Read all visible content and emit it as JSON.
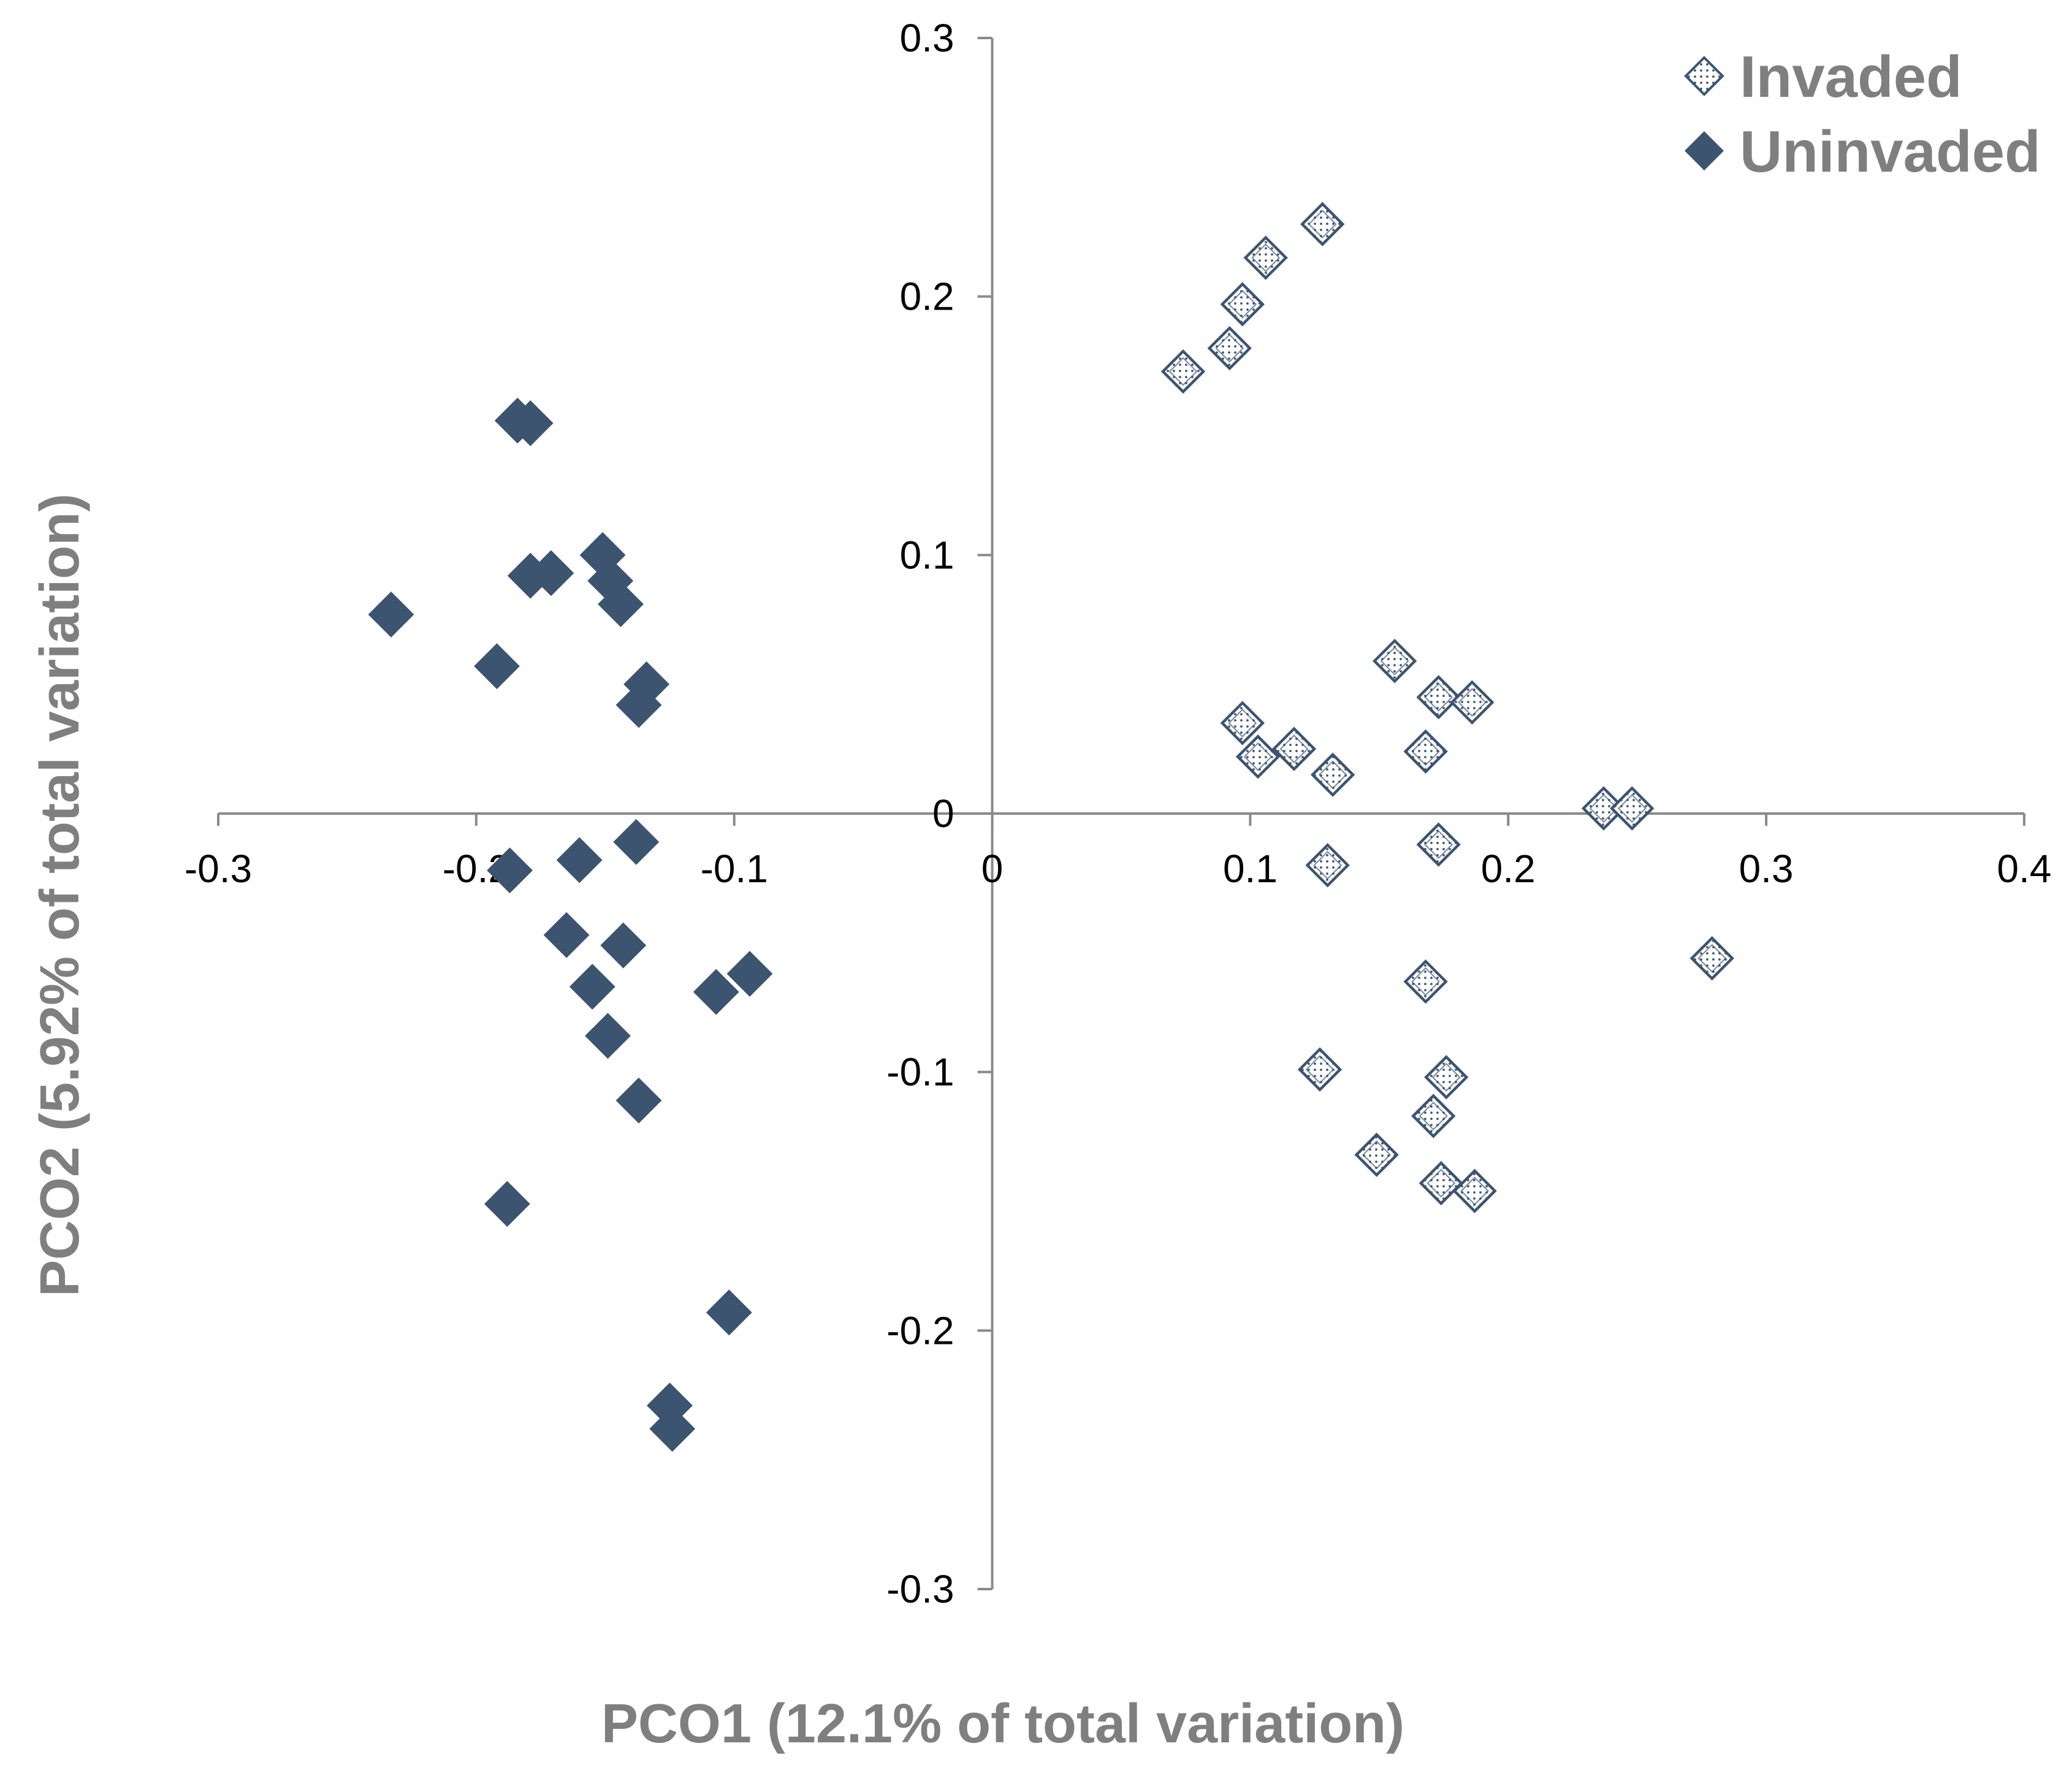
{
  "chart_data": {
    "type": "scatter",
    "title": "",
    "xlabel": "PCO1 (12.1% of total variation)",
    "ylabel": "PCO2 (5.92% of total variation)",
    "xlim": [
      -0.3,
      0.4
    ],
    "ylim": [
      -0.3,
      0.3
    ],
    "x_ticks": [
      -0.3,
      -0.2,
      -0.1,
      0,
      0.1,
      0.2,
      0.3,
      0.4
    ],
    "x_tick_labels": [
      "-0.3",
      "-0.2",
      "-0.1",
      "0",
      "0.1",
      "0.2",
      "0.3",
      "0.4"
    ],
    "y_ticks": [
      0.3,
      0.2,
      0.1,
      0,
      -0.1,
      -0.2,
      -0.3
    ],
    "y_tick_labels": [
      "0.3",
      "0.2",
      "0.1",
      "0",
      "-0.1",
      "-0.2",
      "-0.3"
    ],
    "grid": false,
    "legend_position": "top-right",
    "colors": {
      "uninvaded": "#3d5470",
      "invaded_outline": "#3d5470",
      "invaded_fill": "#ffffff",
      "axis": "#8a8a8a",
      "title_text": "#7f7f7f"
    },
    "series": [
      {
        "name": "Invaded",
        "marker": "diamond-dotted",
        "points": [
          [
            0.128,
            0.228
          ],
          [
            0.106,
            0.215
          ],
          [
            0.097,
            0.197
          ],
          [
            0.092,
            0.18
          ],
          [
            0.074,
            0.171
          ],
          [
            0.156,
            0.059
          ],
          [
            0.173,
            0.045
          ],
          [
            0.186,
            0.043
          ],
          [
            0.097,
            0.035
          ],
          [
            0.117,
            0.025
          ],
          [
            0.103,
            0.022
          ],
          [
            0.168,
            0.024
          ],
          [
            0.132,
            0.015
          ],
          [
            0.237,
            0.002
          ],
          [
            0.248,
            0.002
          ],
          [
            0.173,
            -0.012
          ],
          [
            0.13,
            -0.02
          ],
          [
            0.279,
            -0.056
          ],
          [
            0.168,
            -0.065
          ],
          [
            0.127,
            -0.099
          ],
          [
            0.176,
            -0.102
          ],
          [
            0.171,
            -0.117
          ],
          [
            0.149,
            -0.132
          ],
          [
            0.174,
            -0.143
          ],
          [
            0.187,
            -0.146
          ]
        ]
      },
      {
        "name": "Uninvaded",
        "marker": "diamond-filled",
        "points": [
          [
            -0.184,
            0.152
          ],
          [
            -0.179,
            0.151
          ],
          [
            -0.151,
            0.1
          ],
          [
            -0.148,
            0.09
          ],
          [
            -0.179,
            0.092
          ],
          [
            -0.171,
            0.093
          ],
          [
            -0.144,
            0.081
          ],
          [
            -0.233,
            0.077
          ],
          [
            -0.192,
            0.057
          ],
          [
            -0.134,
            0.05
          ],
          [
            -0.137,
            0.042
          ],
          [
            -0.138,
            -0.011
          ],
          [
            -0.16,
            -0.018
          ],
          [
            -0.187,
            -0.022
          ],
          [
            -0.165,
            -0.047
          ],
          [
            -0.143,
            -0.051
          ],
          [
            -0.155,
            -0.067
          ],
          [
            -0.107,
            -0.069
          ],
          [
            -0.094,
            -0.062
          ],
          [
            -0.149,
            -0.086
          ],
          [
            -0.137,
            -0.111
          ],
          [
            -0.188,
            -0.151
          ],
          [
            -0.102,
            -0.193
          ],
          [
            -0.125,
            -0.229
          ],
          [
            -0.124,
            -0.238
          ]
        ]
      }
    ]
  }
}
